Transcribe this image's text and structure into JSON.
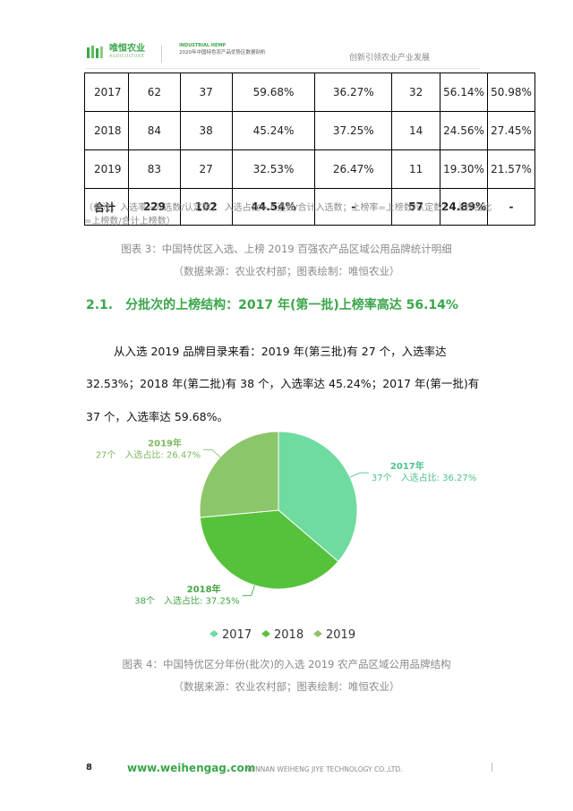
{
  "header": {
    "logo_cn": "唯恒农业",
    "logo_en": "AGRICULTURE",
    "sub_en": "INDUSTRIAL HEMP",
    "sub_cn": "2020年中国特色农产品优势区数据剖析",
    "right": "创新引领农业产业发展"
  },
  "table": {
    "rows": [
      [
        "2017",
        "62",
        "37",
        "59.68%",
        "36.27%",
        "32",
        "56.14%",
        "50.98%"
      ],
      [
        "2018",
        "84",
        "38",
        "45.24%",
        "37.25%",
        "14",
        "24.56%",
        "27.45%"
      ],
      [
        "2019",
        "83",
        "27",
        "32.53%",
        "26.47%",
        "11",
        "19.30%",
        "21.57%"
      ]
    ],
    "total": [
      "合计",
      "229",
      "102",
      "44.54%",
      "-",
      "57",
      "24.89%",
      "-"
    ]
  },
  "note": {
    "line1": "（备注：入选率=入选数/认定数；　入选占比=入选数/合计入选数；上榜率=上榜数/认定数；　上榜占比",
    "line2": "=上榜数/合计上榜数）"
  },
  "caption3": {
    "title": "图表 3：中国特优区入选、上榜 2019 百强农产品区域公用品牌统计明细",
    "source": "（数据来源：农业农村部；图表绘制：唯恒农业）"
  },
  "section": {
    "number": "2.1.",
    "title": "分批次的上榜结构：2017 年(第一批)上榜率高达 56.14%"
  },
  "paragraph": {
    "line1": "从入选 2019 品牌目录来看：2019 年(第三批)有 27 个，入选率达",
    "line2": "32.53%；2018 年(第二批)有 38 个，入选率达 45.24%；2017 年(第一批)有",
    "line3": "37 个，入选率达 59.68%。"
  },
  "chart_data": {
    "type": "pie",
    "categories": [
      "2017",
      "2018",
      "2019"
    ],
    "values": [
      37,
      38,
      27
    ],
    "labels": [
      {
        "year": "2017年",
        "detail": "37个　入选占比: 36.27%"
      },
      {
        "year": "2018年",
        "detail": "38个　入选占比: 37.25%"
      },
      {
        "year": "2019年",
        "detail": "27个　入选占比: 26.47%"
      }
    ],
    "colors": [
      "#6fdba0",
      "#56c23c",
      "#8cc66a"
    ],
    "label_colors": [
      "#4fc28a",
      "#3ea33f",
      "#7cb85c"
    ],
    "legend": [
      "2017",
      "2018",
      "2019"
    ],
    "legend_position": "bottom"
  },
  "caption4": {
    "title": "图表 4：中国特优区分年份(批次)的入选 2019 农产品区域公用品牌结构",
    "source": "（数据来源：农业农村部；图表绘制：唯恒农业）"
  },
  "footer": {
    "page": "8",
    "url": "www.weihengag.com",
    "company": "YUNNAN WEIHENG JIYE TECHNOLOGY CO.,LTD."
  }
}
